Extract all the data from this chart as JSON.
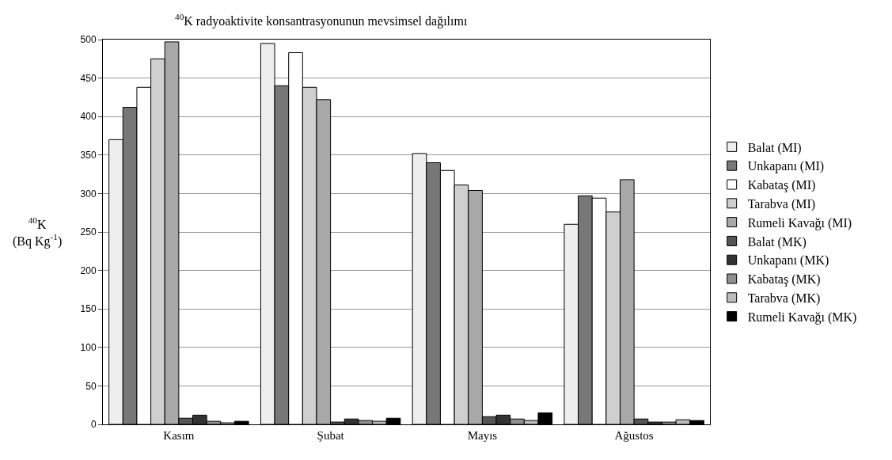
{
  "chart_data": {
    "type": "bar",
    "title": "$^{40}$K radyoaktivite konsantrasyonunun mevsimsel dağılımı",
    "ylabel": "$^{40}$K (Bq Kg$^{-1}$)",
    "categories": [
      "Kasım",
      "Şubat",
      "Mayıs",
      "Ağustos"
    ],
    "series": [
      {
        "name": "Balat (MI)",
        "color": "#eeeeee",
        "values": [
          370,
          495,
          352,
          260
        ]
      },
      {
        "name": "Unkapanı (MI)",
        "color": "#777777",
        "values": [
          412,
          440,
          340,
          297
        ]
      },
      {
        "name": "Kabataş (MI)",
        "color": "#ffffff",
        "values": [
          438,
          483,
          330,
          294
        ]
      },
      {
        "name": "Tarabva (MI)",
        "color": "#cfcfcf",
        "values": [
          475,
          438,
          311,
          276
        ]
      },
      {
        "name": "Rumeli Kavağı (MI)",
        "color": "#a8a8a8",
        "values": [
          497,
          422,
          304,
          318
        ]
      },
      {
        "name": "Balat (MK)",
        "color": "#555555",
        "values": [
          8,
          3,
          10,
          7
        ]
      },
      {
        "name": "Unkapanı (MK)",
        "color": "#333333",
        "values": [
          12,
          7,
          12,
          3
        ]
      },
      {
        "name": "Kabataş (MK)",
        "color": "#8f8f8f",
        "values": [
          4,
          5,
          7,
          3
        ]
      },
      {
        "name": "Tarabva (MK)",
        "color": "#bcbcbc",
        "values": [
          2,
          4,
          5,
          6
        ]
      },
      {
        "name": "Rumeli Kavağı (MK)",
        "color": "#000000",
        "values": [
          4,
          8,
          15,
          5
        ]
      }
    ],
    "ylim": [
      0,
      500
    ],
    "yticks": [
      0,
      50,
      100,
      150,
      200,
      250,
      300,
      350,
      400,
      450,
      500
    ],
    "grid": "y",
    "legend": "right"
  }
}
